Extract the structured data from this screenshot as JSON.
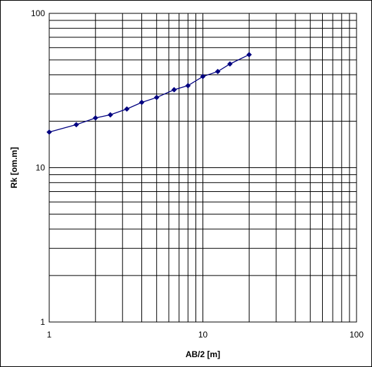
{
  "chart_data": {
    "type": "line",
    "xlabel": "AB/2 [m]",
    "ylabel": "Rk [om.m]",
    "x_scale": "log",
    "y_scale": "log",
    "xlim": [
      1,
      100
    ],
    "ylim": [
      1,
      100
    ],
    "x_ticks": [
      "1",
      "10",
      "100"
    ],
    "y_ticks": [
      "100",
      "10",
      "1"
    ],
    "grid": true,
    "legend": "none",
    "line_color": "#000080",
    "series": [
      {
        "x": [
          1,
          1.5,
          2,
          2.5,
          3.2,
          4,
          5,
          6.5,
          8,
          10,
          12.5,
          15,
          20
        ],
        "y": [
          17,
          19,
          21,
          22,
          24,
          26.5,
          28.5,
          32,
          34,
          39,
          42,
          47,
          54
        ]
      }
    ]
  }
}
